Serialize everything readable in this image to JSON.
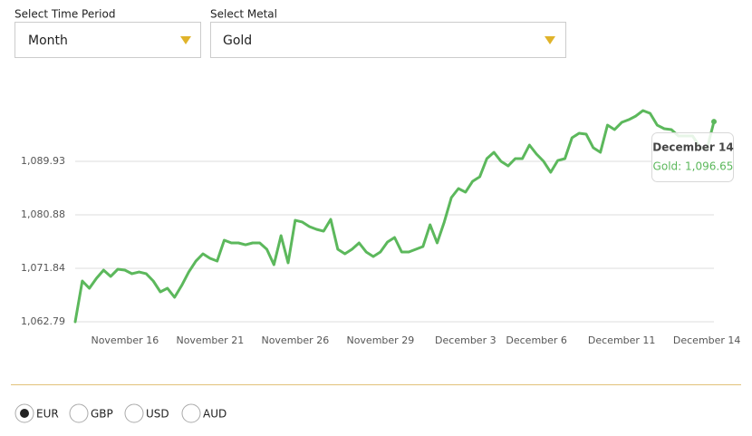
{
  "controls": {
    "time_period": {
      "label": "Select Time Period",
      "value": "Month"
    },
    "metal": {
      "label": "Select Metal",
      "value": "Gold"
    }
  },
  "chart_data": {
    "type": "line",
    "color": "#5cb85c",
    "categories": [
      null,
      null,
      null,
      null,
      null,
      null,
      null,
      "November 16",
      null,
      null,
      null,
      null,
      null,
      null,
      null,
      null,
      null,
      null,
      null,
      "November 21",
      null,
      null,
      null,
      null,
      null,
      null,
      null,
      null,
      null,
      null,
      null,
      "November 26",
      null,
      null,
      null,
      null,
      null,
      null,
      null,
      null,
      null,
      null,
      null,
      "November 29",
      null,
      null,
      null,
      null,
      null,
      null,
      null,
      null,
      null,
      null,
      null,
      "December 3",
      null,
      null,
      null,
      null,
      null,
      null,
      null,
      null,
      null,
      "December 6",
      null,
      null,
      null,
      null,
      null,
      null,
      null,
      null,
      null,
      null,
      null,
      "December 11",
      null,
      null,
      null,
      null,
      null,
      null,
      null,
      null,
      null,
      null,
      null,
      "December 14",
      null
    ],
    "values": [
      1062.79,
      1069.69,
      1068.46,
      1070.15,
      1071.53,
      1070.46,
      1071.68,
      1071.53,
      1070.92,
      1071.22,
      1070.92,
      1069.69,
      1067.85,
      1068.46,
      1066.93,
      1068.92,
      1071.22,
      1073.06,
      1074.29,
      1073.52,
      1073.06,
      1076.59,
      1076.13,
      1076.13,
      1075.82,
      1076.13,
      1076.13,
      1075.06,
      1072.45,
      1077.36,
      1072.76,
      1079.96,
      1079.66,
      1078.89,
      1078.43,
      1078.12,
      1080.12,
      1075.06,
      1074.29,
      1075.06,
      1076.13,
      1074.6,
      1073.83,
      1074.6,
      1076.28,
      1077.05,
      1074.6,
      1074.6,
      1075.06,
      1075.52,
      1079.2,
      1076.13,
      1079.66,
      1083.8,
      1085.33,
      1084.72,
      1086.56,
      1087.32,
      1090.39,
      1091.46,
      1089.93,
      1089.16,
      1090.39,
      1090.39,
      1092.69,
      1091.16,
      1089.93,
      1088.09,
      1090.08,
      1090.39,
      1093.92,
      1094.68,
      1094.53,
      1092.23,
      1091.46,
      1096.06,
      1095.3,
      1096.52,
      1096.98,
      1097.6,
      1098.52,
      1098.06,
      1096.06,
      1095.45,
      1095.3,
      1094.22,
      1094.22,
      1094.22,
      1092.38,
      1091.92,
      1096.65
    ],
    "ylim": [
      1062.79,
      1099.5
    ],
    "yticks": [
      {
        "value": 1062.79,
        "label": "1,062.79"
      },
      {
        "value": 1071.84,
        "label": "1,071.84"
      },
      {
        "value": 1080.88,
        "label": "1,080.88"
      },
      {
        "value": 1089.93,
        "label": "1,089.93"
      }
    ],
    "grid": true,
    "tooltip": {
      "title": "December 14",
      "text": "Gold: 1,096.65"
    }
  },
  "currency": {
    "options": [
      "EUR",
      "GBP",
      "USD",
      "AUD"
    ],
    "selected": "EUR"
  }
}
